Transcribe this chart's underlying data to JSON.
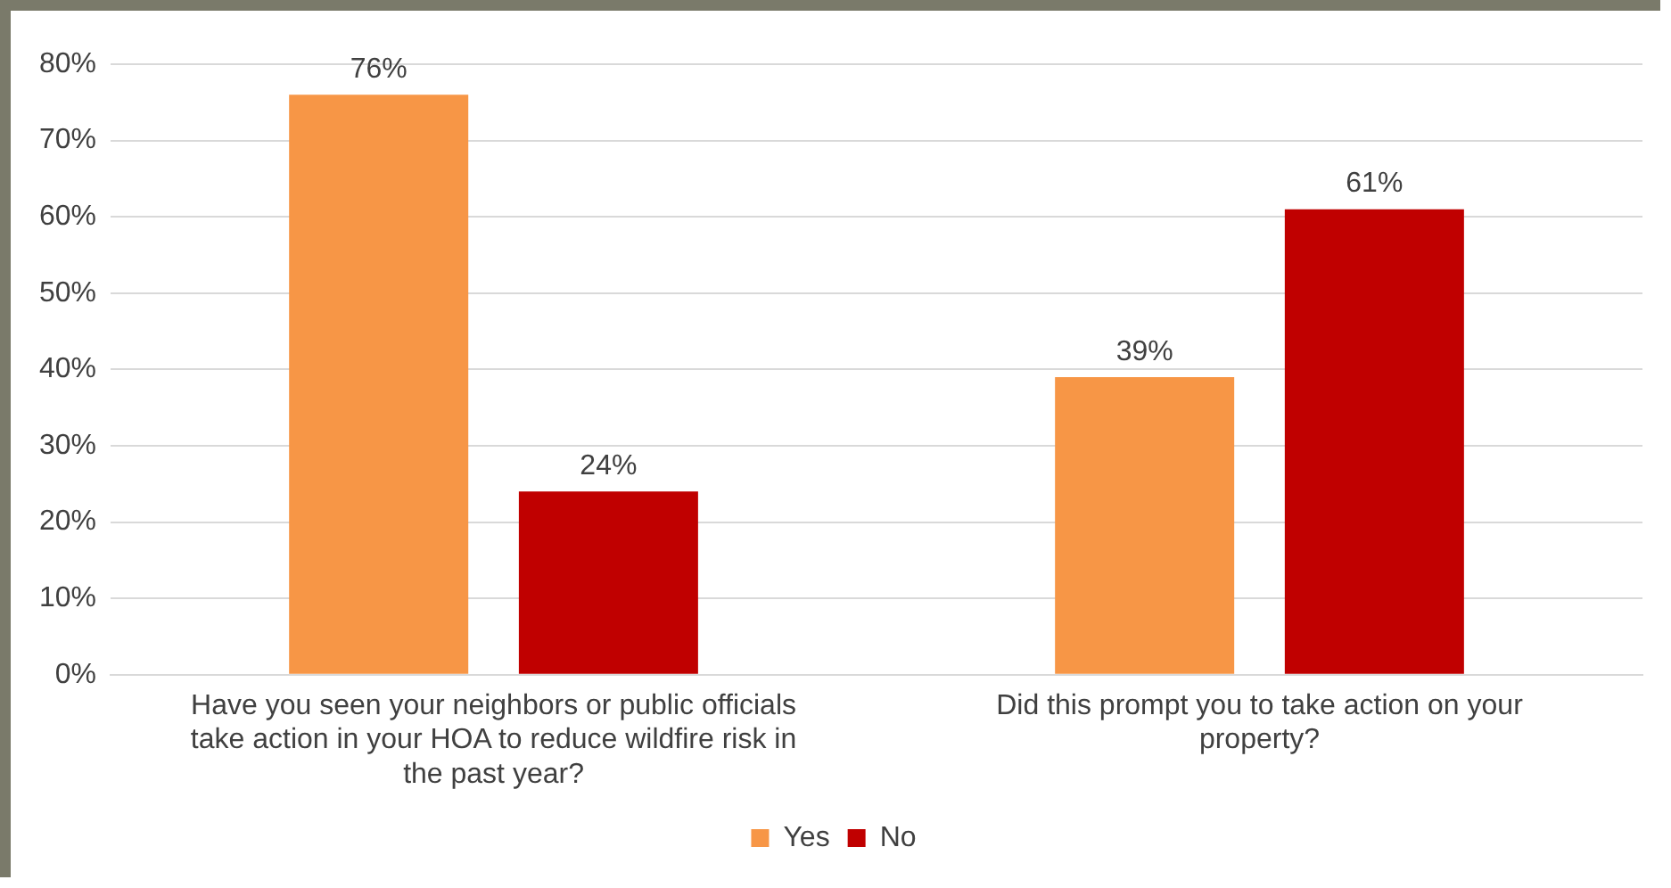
{
  "chart_data": {
    "type": "bar",
    "categories": [
      "Have you seen your neighbors or public officials take action in your HOA to reduce wildfire risk in the past year?",
      "Did this prompt you to take action on your property?"
    ],
    "series": [
      {
        "name": "Yes",
        "color": "#f79646",
        "values": [
          76,
          39
        ],
        "value_labels": [
          "76%",
          "39%"
        ]
      },
      {
        "name": "No",
        "color": "#c00000",
        "values": [
          24,
          61
        ],
        "value_labels": [
          "24%",
          "61%"
        ]
      }
    ],
    "ylim": [
      0,
      80
    ],
    "yticks": [
      {
        "value": 0,
        "label": "0%"
      },
      {
        "value": 10,
        "label": "10%"
      },
      {
        "value": 20,
        "label": "20%"
      },
      {
        "value": 30,
        "label": "30%"
      },
      {
        "value": 40,
        "label": "40%"
      },
      {
        "value": 50,
        "label": "50%"
      },
      {
        "value": 60,
        "label": "60%"
      },
      {
        "value": 70,
        "label": "70%"
      },
      {
        "value": 80,
        "label": "80%"
      }
    ],
    "grid": "y",
    "legend": "bottom"
  }
}
